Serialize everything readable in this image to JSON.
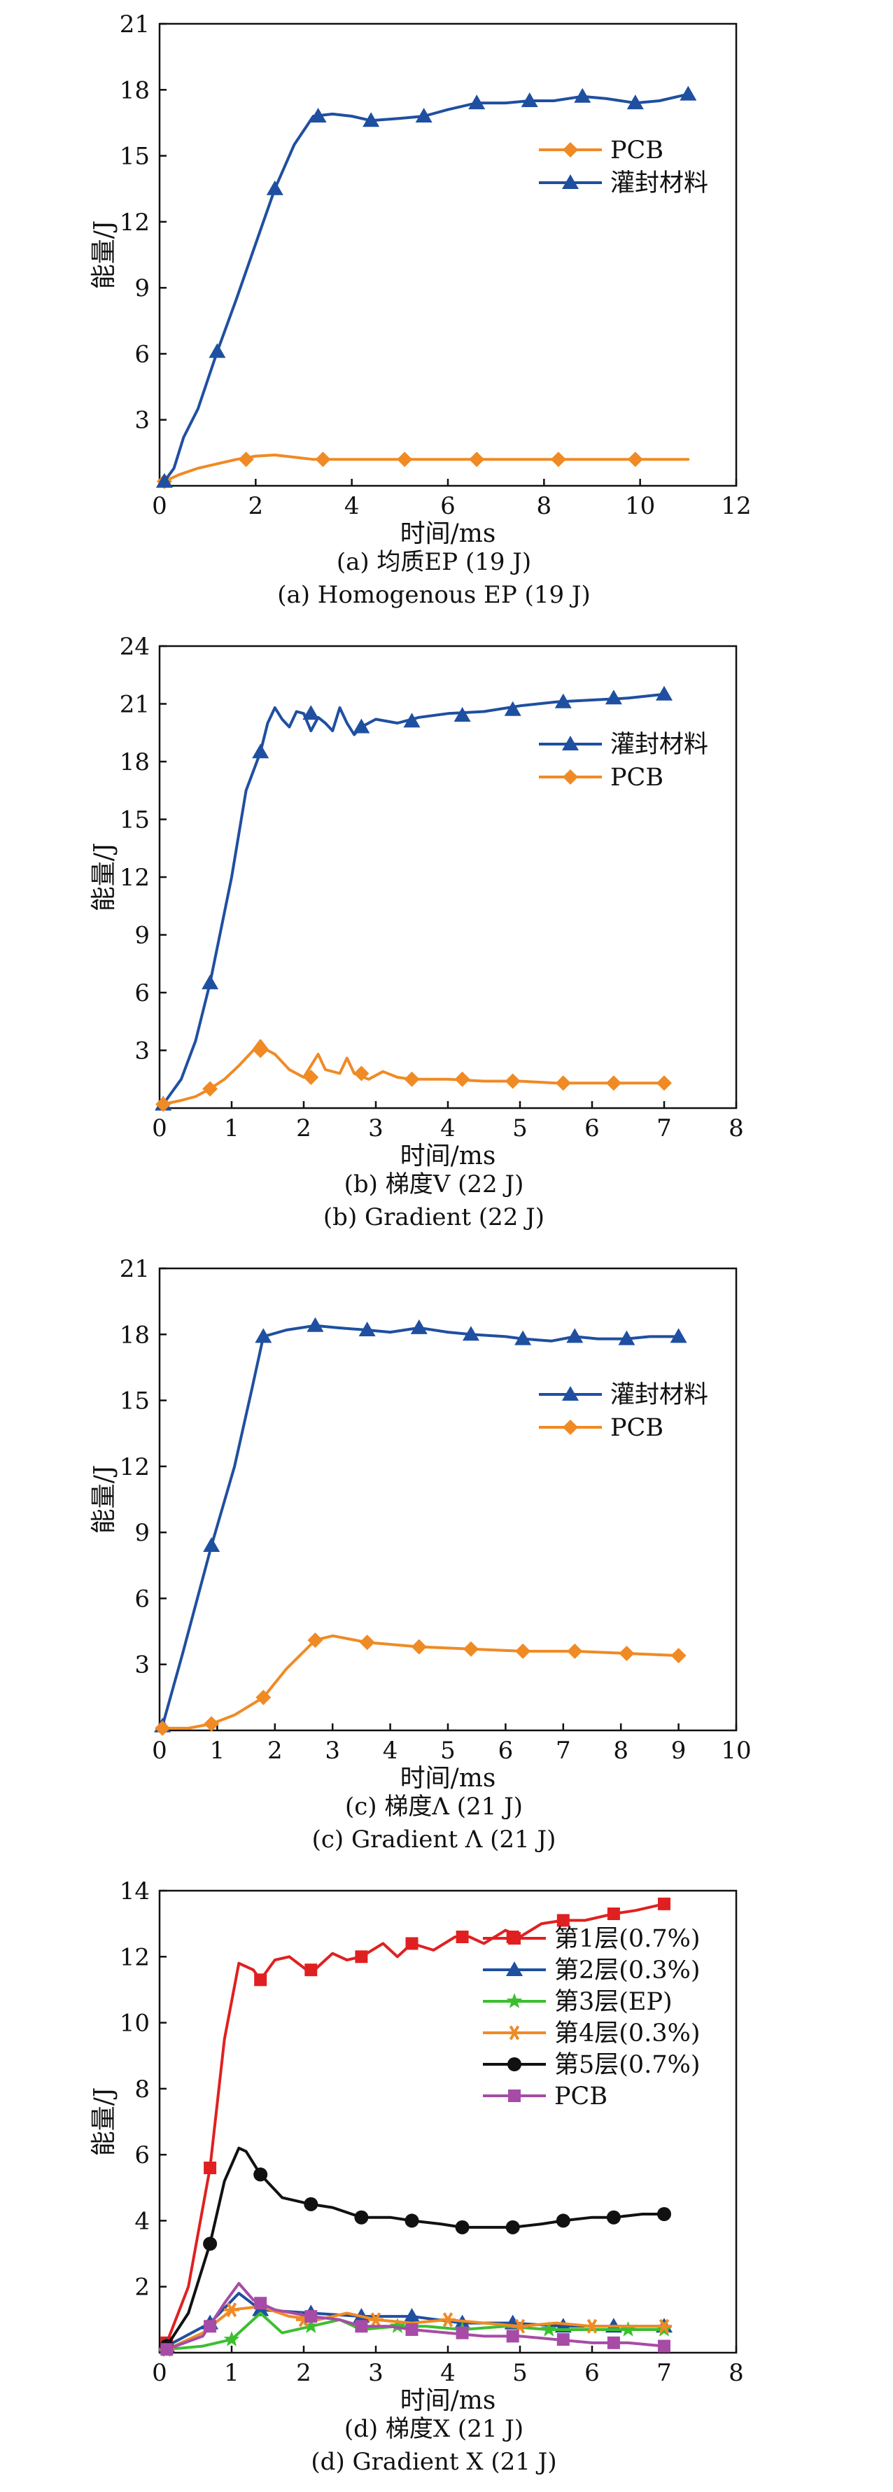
{
  "chart_data": [
    {
      "type": "line",
      "xlabel": "时间/ms",
      "ylabel": "能量/J",
      "xlim": [
        0,
        12
      ],
      "ylim": [
        0,
        21
      ],
      "xticks": [
        0,
        2,
        4,
        6,
        8,
        10,
        12
      ],
      "yticks": [
        3,
        6,
        9,
        12,
        15,
        18,
        21
      ],
      "legend_position": "right",
      "caption_cn": "(a) 均质EP (19 J)",
      "caption_en": "(a) Homogenous EP (19 J)",
      "series": [
        {
          "name": "PCB",
          "color": "#f08a24",
          "marker": "diamond",
          "x": [
            0.1,
            0.4,
            0.8,
            1.2,
            1.6,
            2.0,
            2.4,
            2.8,
            3.2,
            4.0,
            5.0,
            6.0,
            6.5,
            7.0,
            8.0,
            8.5,
            9.0,
            10.0,
            11.0
          ],
          "y": [
            0.2,
            0.5,
            0.8,
            1.0,
            1.2,
            1.35,
            1.4,
            1.3,
            1.2,
            1.2,
            1.2,
            1.2,
            1.2,
            1.2,
            1.2,
            1.2,
            1.2,
            1.2,
            1.2
          ],
          "marker_x": [
            0.1,
            1.8,
            3.4,
            5.1,
            6.6,
            8.3,
            9.9
          ],
          "marker_y": [
            0.2,
            1.2,
            1.2,
            1.2,
            1.2,
            1.2,
            1.2
          ]
        },
        {
          "name": "灌封材料",
          "color": "#1f4fa0",
          "marker": "triangle",
          "x": [
            0.1,
            0.3,
            0.5,
            0.8,
            1.2,
            1.6,
            2.0,
            2.4,
            2.8,
            3.2,
            3.6,
            4.0,
            4.4,
            5.0,
            5.5,
            6.0,
            6.6,
            7.2,
            7.7,
            8.2,
            8.8,
            9.3,
            9.9,
            10.4,
            11.0
          ],
          "y": [
            0.2,
            0.8,
            2.2,
            3.5,
            6.1,
            8.5,
            11.0,
            13.5,
            15.5,
            16.8,
            16.9,
            16.8,
            16.6,
            16.7,
            16.8,
            17.1,
            17.4,
            17.4,
            17.5,
            17.5,
            17.7,
            17.6,
            17.4,
            17.5,
            17.8
          ],
          "marker_x": [
            0.1,
            1.2,
            2.4,
            3.3,
            4.4,
            5.5,
            6.6,
            7.7,
            8.8,
            9.9,
            11.0
          ],
          "marker_y": [
            0.2,
            6.1,
            13.5,
            16.8,
            16.6,
            16.8,
            17.4,
            17.5,
            17.7,
            17.4,
            17.8
          ]
        }
      ]
    },
    {
      "type": "line",
      "xlabel": "时间/ms",
      "ylabel": "能量/J",
      "xlim": [
        0,
        8
      ],
      "ylim": [
        0,
        24
      ],
      "xticks": [
        0,
        1,
        2,
        3,
        4,
        5,
        6,
        7,
        8
      ],
      "yticks": [
        3,
        6,
        9,
        12,
        15,
        18,
        21,
        24
      ],
      "legend_position": "right",
      "caption_cn": "(b) 梯度V (22 J)",
      "caption_en": "(b) Gradient (22 J)",
      "series": [
        {
          "name": "灌封材料",
          "color": "#1f4fa0",
          "marker": "triangle",
          "x": [
            0.05,
            0.3,
            0.5,
            0.7,
            1.0,
            1.2,
            1.4,
            1.5,
            1.6,
            1.7,
            1.8,
            1.9,
            2.0,
            2.1,
            2.2,
            2.3,
            2.4,
            2.5,
            2.6,
            2.7,
            2.8,
            3.0,
            3.3,
            3.6,
            4.0,
            4.5,
            5.0,
            5.5,
            6.0,
            6.5,
            7.0
          ],
          "y": [
            0.2,
            1.5,
            3.5,
            6.5,
            12.0,
            16.5,
            18.5,
            20.0,
            20.8,
            20.2,
            19.8,
            20.6,
            20.5,
            19.6,
            20.3,
            20.0,
            19.6,
            20.8,
            20.0,
            19.4,
            19.8,
            20.2,
            20.0,
            20.3,
            20.5,
            20.6,
            20.9,
            21.1,
            21.2,
            21.3,
            21.5
          ],
          "marker_x": [
            0.05,
            0.7,
            1.4,
            2.1,
            2.8,
            3.5,
            4.2,
            4.9,
            5.6,
            6.3,
            7.0
          ],
          "marker_y": [
            0.2,
            6.5,
            18.5,
            20.5,
            19.8,
            20.1,
            20.4,
            20.7,
            21.1,
            21.3,
            21.5
          ]
        },
        {
          "name": "PCB",
          "color": "#f08a24",
          "marker": "diamond",
          "x": [
            0.05,
            0.3,
            0.5,
            0.7,
            0.9,
            1.1,
            1.3,
            1.4,
            1.5,
            1.6,
            1.8,
            2.0,
            2.1,
            2.2,
            2.3,
            2.5,
            2.6,
            2.7,
            2.9,
            3.1,
            3.3,
            3.5,
            4.0,
            4.5,
            5.0,
            5.5,
            6.0,
            6.5,
            7.0
          ],
          "y": [
            0.2,
            0.4,
            0.6,
            1.0,
            1.5,
            2.2,
            3.0,
            3.5,
            3.0,
            2.8,
            2.0,
            1.6,
            2.2,
            2.8,
            2.0,
            1.8,
            2.6,
            1.8,
            1.5,
            1.9,
            1.6,
            1.5,
            1.5,
            1.4,
            1.4,
            1.3,
            1.3,
            1.3,
            1.3
          ],
          "marker_x": [
            0.05,
            0.7,
            1.4,
            2.1,
            2.8,
            3.5,
            4.2,
            4.9,
            5.6,
            6.3,
            7.0
          ],
          "marker_y": [
            0.2,
            1.0,
            3.0,
            1.6,
            1.8,
            1.5,
            1.5,
            1.4,
            1.3,
            1.3,
            1.3
          ]
        }
      ]
    },
    {
      "type": "line",
      "xlabel": "时间/ms",
      "ylabel": "能量/J",
      "xlim": [
        0,
        10
      ],
      "ylim": [
        0,
        21
      ],
      "xticks": [
        0,
        1,
        2,
        3,
        4,
        5,
        6,
        7,
        8,
        9,
        10
      ],
      "yticks": [
        3,
        6,
        9,
        12,
        15,
        18,
        21
      ],
      "legend_position": "right",
      "caption_cn": "(c) 梯度Λ (21 J)",
      "caption_en": "(c) Gradient Λ (21 J)",
      "series": [
        {
          "name": "灌封材料",
          "color": "#1f4fa0",
          "marker": "triangle",
          "x": [
            0.05,
            0.4,
            0.9,
            1.3,
            1.6,
            1.8,
            2.2,
            2.7,
            3.1,
            3.6,
            4.0,
            4.5,
            5.0,
            5.4,
            6.0,
            6.3,
            6.8,
            7.2,
            7.6,
            8.1,
            8.5,
            9.0
          ],
          "y": [
            0.2,
            3.5,
            8.4,
            12.0,
            15.5,
            17.9,
            18.2,
            18.4,
            18.3,
            18.2,
            18.1,
            18.3,
            18.1,
            18.0,
            17.9,
            17.8,
            17.7,
            17.9,
            17.8,
            17.8,
            17.9,
            17.9
          ],
          "marker_x": [
            0.05,
            0.9,
            1.8,
            2.7,
            3.6,
            4.5,
            5.4,
            6.3,
            7.2,
            8.1,
            9.0
          ],
          "marker_y": [
            0.2,
            8.4,
            17.9,
            18.4,
            18.2,
            18.3,
            18.0,
            17.8,
            17.9,
            17.8,
            17.9
          ]
        },
        {
          "name": "PCB",
          "color": "#f08a24",
          "marker": "diamond",
          "x": [
            0.05,
            0.5,
            0.9,
            1.3,
            1.8,
            2.2,
            2.7,
            3.0,
            3.6,
            4.5,
            5.4,
            6.3,
            7.2,
            8.1,
            9.0
          ],
          "y": [
            0.1,
            0.1,
            0.3,
            0.7,
            1.5,
            2.8,
            4.1,
            4.3,
            4.0,
            3.8,
            3.7,
            3.6,
            3.6,
            3.5,
            3.4
          ],
          "marker_x": [
            0.05,
            0.9,
            1.8,
            2.7,
            3.6,
            4.5,
            5.4,
            6.3,
            7.2,
            8.1,
            9.0
          ],
          "marker_y": [
            0.1,
            0.3,
            1.5,
            4.1,
            4.0,
            3.8,
            3.7,
            3.6,
            3.6,
            3.5,
            3.4
          ]
        }
      ]
    },
    {
      "type": "line",
      "xlabel": "时间/ms",
      "ylabel": "能量/J",
      "xlim": [
        0,
        8
      ],
      "ylim": [
        0,
        14
      ],
      "xticks": [
        0,
        1,
        2,
        3,
        4,
        5,
        6,
        7,
        8
      ],
      "yticks": [
        2,
        4,
        6,
        8,
        10,
        12,
        14
      ],
      "legend_position": "right",
      "caption_cn": "(d) 梯度X (21 J)",
      "caption_en": "(d) Gradient X (21 J)",
      "series": [
        {
          "name": "第1层(0.7%)",
          "color": "#e02020",
          "marker": "square",
          "x": [
            0.1,
            0.4,
            0.7,
            0.9,
            1.1,
            1.3,
            1.4,
            1.6,
            1.8,
            2.1,
            2.4,
            2.6,
            2.8,
            3.1,
            3.3,
            3.5,
            3.8,
            4.1,
            4.3,
            4.5,
            4.8,
            5.0,
            5.3,
            5.6,
            5.9,
            6.3,
            6.6,
            7.0
          ],
          "y": [
            0.3,
            2.0,
            5.6,
            9.5,
            11.8,
            11.6,
            11.3,
            11.9,
            12.0,
            11.5,
            12.1,
            11.9,
            12.0,
            12.4,
            12.0,
            12.4,
            12.2,
            12.6,
            12.6,
            12.4,
            12.8,
            12.6,
            13.0,
            13.1,
            13.1,
            13.3,
            13.4,
            13.6
          ],
          "marker_x": [
            0.1,
            0.7,
            1.4,
            2.1,
            2.8,
            3.5,
            4.2,
            4.9,
            5.6,
            6.3,
            7.0
          ],
          "marker_y": [
            0.3,
            5.6,
            11.3,
            11.6,
            12.0,
            12.4,
            12.6,
            12.6,
            13.1,
            13.3,
            13.6
          ]
        },
        {
          "name": "第2层(0.3%)",
          "color": "#1f4fa0",
          "marker": "triangle",
          "x": [
            0.1,
            0.7,
            1.1,
            1.4,
            2.1,
            2.8,
            3.5,
            4.2,
            4.9,
            5.6,
            6.3,
            7.0
          ],
          "y": [
            0.2,
            0.9,
            1.8,
            1.3,
            1.2,
            1.1,
            1.1,
            0.9,
            0.9,
            0.8,
            0.8,
            0.8
          ],
          "marker_x": [
            0.1,
            0.7,
            1.4,
            2.1,
            2.8,
            3.5,
            4.2,
            4.9,
            5.6,
            6.3,
            7.0
          ],
          "marker_y": [
            0.2,
            0.9,
            1.3,
            1.2,
            1.1,
            1.1,
            0.9,
            0.9,
            0.8,
            0.8,
            0.8
          ]
        },
        {
          "name": "第3层(EP)",
          "color": "#3bbf2f",
          "marker": "star",
          "x": [
            0.1,
            0.6,
            1.0,
            1.4,
            1.7,
            2.1,
            2.5,
            2.8,
            3.3,
            3.7,
            4.2,
            4.8,
            5.4,
            6.0,
            6.5,
            7.0
          ],
          "y": [
            0.1,
            0.2,
            0.4,
            1.2,
            0.6,
            0.8,
            1.0,
            0.7,
            0.8,
            0.8,
            0.7,
            0.8,
            0.7,
            0.7,
            0.7,
            0.7
          ],
          "marker_x": [
            0.1,
            1.0,
            2.1,
            3.3,
            4.2,
            5.4,
            6.5,
            7.0
          ],
          "marker_y": [
            0.1,
            0.4,
            0.8,
            0.8,
            0.7,
            0.7,
            0.7,
            0.7
          ]
        },
        {
          "name": "第4层(0.3%)",
          "color": "#f08a24",
          "marker": "asterisk",
          "x": [
            0.1,
            0.6,
            1.0,
            1.4,
            1.8,
            2.2,
            2.6,
            3.0,
            3.5,
            4.0,
            4.5,
            5.0,
            5.5,
            6.0,
            6.5,
            7.0
          ],
          "y": [
            0.1,
            0.6,
            1.3,
            1.4,
            1.1,
            1.0,
            1.2,
            1.0,
            0.9,
            1.0,
            0.9,
            0.8,
            0.9,
            0.8,
            0.8,
            0.8
          ],
          "marker_x": [
            0.1,
            1.0,
            2.0,
            3.0,
            4.0,
            5.0,
            6.0,
            7.0
          ],
          "marker_y": [
            0.1,
            1.3,
            1.0,
            1.0,
            1.0,
            0.8,
            0.8,
            0.8
          ]
        },
        {
          "name": "第5层(0.7%)",
          "color": "#111111",
          "marker": "circle",
          "x": [
            0.1,
            0.4,
            0.7,
            0.9,
            1.1,
            1.2,
            1.4,
            1.7,
            2.1,
            2.4,
            2.8,
            3.2,
            3.5,
            3.9,
            4.2,
            4.6,
            4.9,
            5.3,
            5.6,
            6.0,
            6.3,
            6.7,
            7.0
          ],
          "y": [
            0.2,
            1.2,
            3.3,
            5.2,
            6.2,
            6.1,
            5.4,
            4.7,
            4.5,
            4.4,
            4.1,
            4.1,
            4.0,
            3.9,
            3.8,
            3.8,
            3.8,
            3.9,
            4.0,
            4.1,
            4.1,
            4.2,
            4.2
          ],
          "marker_x": [
            0.1,
            0.7,
            1.4,
            2.1,
            2.8,
            3.5,
            4.2,
            4.9,
            5.6,
            6.3,
            7.0
          ],
          "marker_y": [
            0.2,
            3.3,
            5.4,
            4.5,
            4.1,
            4.0,
            3.8,
            3.8,
            4.0,
            4.1,
            4.2
          ]
        },
        {
          "name": "PCB",
          "color": "#a64ca6",
          "marker": "square",
          "x": [
            0.1,
            0.6,
            0.9,
            1.1,
            1.3,
            1.6,
            2.1,
            2.5,
            2.8,
            3.2,
            3.5,
            4.0,
            4.5,
            5.0,
            5.5,
            6.0,
            6.5,
            7.0
          ],
          "y": [
            0.1,
            0.5,
            1.5,
            2.1,
            1.6,
            1.3,
            1.1,
            1.0,
            0.8,
            0.8,
            0.7,
            0.6,
            0.5,
            0.5,
            0.4,
            0.3,
            0.3,
            0.2
          ],
          "marker_x": [
            0.1,
            0.7,
            1.4,
            2.1,
            2.8,
            3.5,
            4.2,
            4.9,
            5.6,
            6.3,
            7.0
          ],
          "marker_y": [
            0.1,
            0.8,
            1.5,
            1.1,
            0.8,
            0.7,
            0.6,
            0.5,
            0.4,
            0.3,
            0.2
          ]
        }
      ]
    }
  ]
}
